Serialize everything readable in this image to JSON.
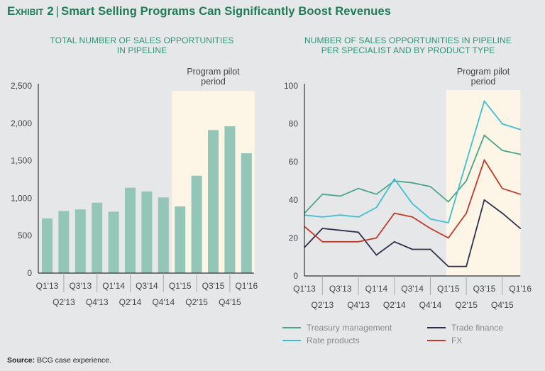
{
  "header": {
    "exhibit": "Exhibit 2",
    "separator": "|",
    "title": "Smart Selling Programs Can Significantly Boost Revenues"
  },
  "source": {
    "label": "Source:",
    "text": "BCG case experience."
  },
  "colors": {
    "bar": "#93c6b6",
    "pilot_shade": "#fdf5e6",
    "treasury": "#4aa58a",
    "rate": "#3fbfd1",
    "trade": "#2c2f4d",
    "fx": "#c0392b"
  },
  "chart_data": [
    {
      "type": "bar",
      "title_line1": "Total number of sales opportunities",
      "title_line2": "in pipeline",
      "categories": [
        "Q1'13",
        "Q2'13",
        "Q3'13",
        "Q4'13",
        "Q1'14",
        "Q2'14",
        "Q3'14",
        "Q4'14",
        "Q1'15",
        "Q2'15",
        "Q3'15",
        "Q4'15",
        "Q1'16"
      ],
      "values": [
        730,
        830,
        850,
        940,
        820,
        1140,
        1090,
        1010,
        890,
        1300,
        1910,
        1960,
        1600
      ],
      "yticks": [
        0,
        500,
        1000,
        1500,
        2000,
        2500
      ],
      "ytick_labels": [
        "0",
        "500",
        "1,000",
        "1,500",
        "2,000",
        "2,500"
      ],
      "ylim": [
        0,
        2500
      ],
      "xlabel": "",
      "ylabel": "",
      "annotation": {
        "line1": "Program pilot",
        "line2": "period",
        "from_category": "Q1'15",
        "to_category": "Q1'16"
      },
      "grid": false
    },
    {
      "type": "line",
      "title_line1": "Number of sales opportunities in pipeline",
      "title_line2": "per specialist and by product type",
      "categories": [
        "Q1'13",
        "Q2'13",
        "Q3'13",
        "Q4'13",
        "Q1'14",
        "Q2'14",
        "Q3'14",
        "Q4'14",
        "Q1'15",
        "Q2'15",
        "Q3'15",
        "Q4'15",
        "Q1'16"
      ],
      "series": [
        {
          "name": "Treasury management",
          "color_key": "treasury",
          "values": [
            33,
            43,
            42,
            46,
            43,
            50,
            49,
            47,
            39,
            50,
            74,
            66,
            64
          ]
        },
        {
          "name": "Rate products",
          "color_key": "rate",
          "values": [
            32,
            31,
            32,
            31,
            36,
            51,
            38,
            30,
            28,
            60,
            92,
            80,
            77
          ]
        },
        {
          "name": "Trade finance",
          "color_key": "trade",
          "values": [
            15,
            25,
            24,
            23,
            11,
            18,
            14,
            14,
            5,
            5,
            40,
            33,
            25
          ]
        },
        {
          "name": "FX",
          "color_key": "fx",
          "values": [
            26,
            18,
            18,
            18,
            20,
            33,
            31,
            25,
            20,
            33,
            61,
            46,
            43
          ]
        }
      ],
      "yticks": [
        0,
        20,
        40,
        60,
        80,
        100
      ],
      "ytick_labels": [
        "0",
        "20",
        "40",
        "60",
        "80",
        "100"
      ],
      "ylim": [
        0,
        100
      ],
      "xlabel": "",
      "ylabel": "",
      "annotation": {
        "line1": "Program pilot",
        "line2": "period",
        "from_category": "Q1'15",
        "to_category": "Q1'16"
      },
      "legend_position": "bottom",
      "grid": false
    }
  ]
}
